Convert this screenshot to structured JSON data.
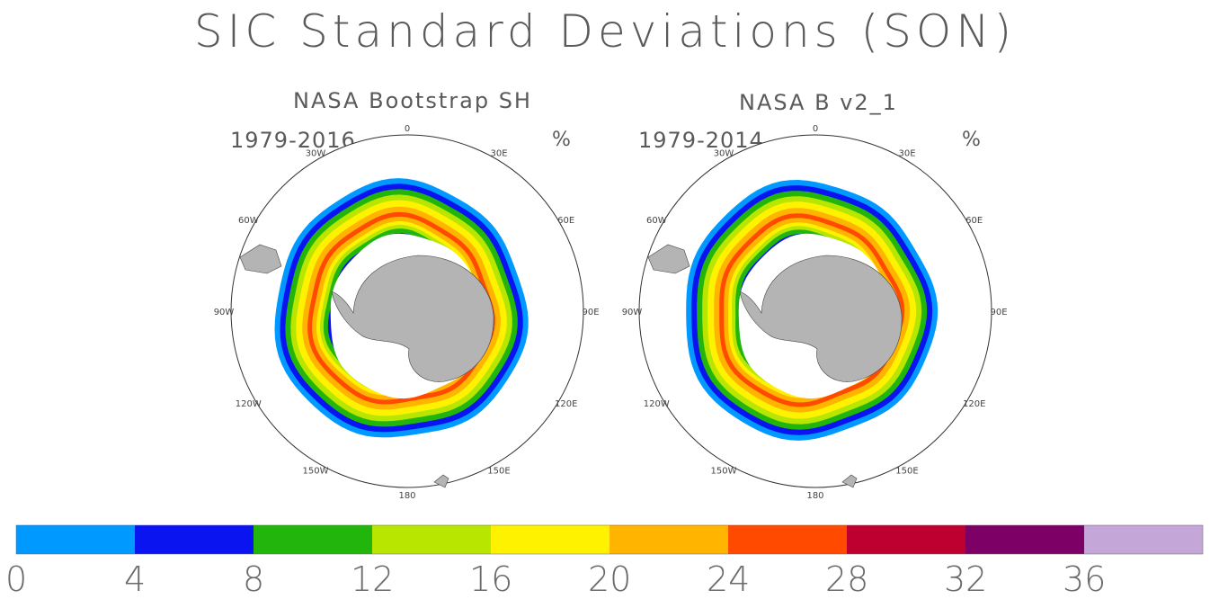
{
  "title": "SIC Standard Deviations (SON)",
  "panels": [
    {
      "title": "NASA Bootstrap SH",
      "years": "1979-2016",
      "unit": "%"
    },
    {
      "title": "NASA B v2_1",
      "years": "1979-2014",
      "unit": "%"
    }
  ],
  "longitude_labels": [
    "0",
    "30E",
    "60E",
    "90E",
    "120E",
    "150E",
    "180",
    "150W",
    "120W",
    "90W",
    "60W",
    "30W"
  ],
  "colorbar": {
    "ticks": [
      "0",
      "4",
      "8",
      "12",
      "16",
      "20",
      "24",
      "28",
      "32",
      "36"
    ],
    "colors": [
      "#0099ff",
      "#0a14f0",
      "#22b60c",
      "#b8e600",
      "#fff200",
      "#ffb400",
      "#ff4a00",
      "#be0030",
      "#7c0066",
      "#c4a6d8"
    ]
  },
  "chart_data": {
    "type": "heatmap",
    "title": "SIC Standard Deviations (SON)",
    "projection": "south polar stereographic",
    "panels": [
      {
        "title": "NASA Bootstrap SH",
        "period": "1979-2016",
        "unit": "%"
      },
      {
        "title": "NASA B v2_1",
        "period": "1979-2014",
        "unit": "%"
      }
    ],
    "color_scale": {
      "levels": [
        0,
        4,
        8,
        12,
        16,
        20,
        24,
        28,
        32,
        36
      ],
      "colors": [
        "#0099ff",
        "#0a14f0",
        "#22b60c",
        "#b8e600",
        "#fff200",
        "#ffb400",
        "#ff4a00",
        "#be0030",
        "#7c0066",
        "#c4a6d8"
      ]
    }
  }
}
